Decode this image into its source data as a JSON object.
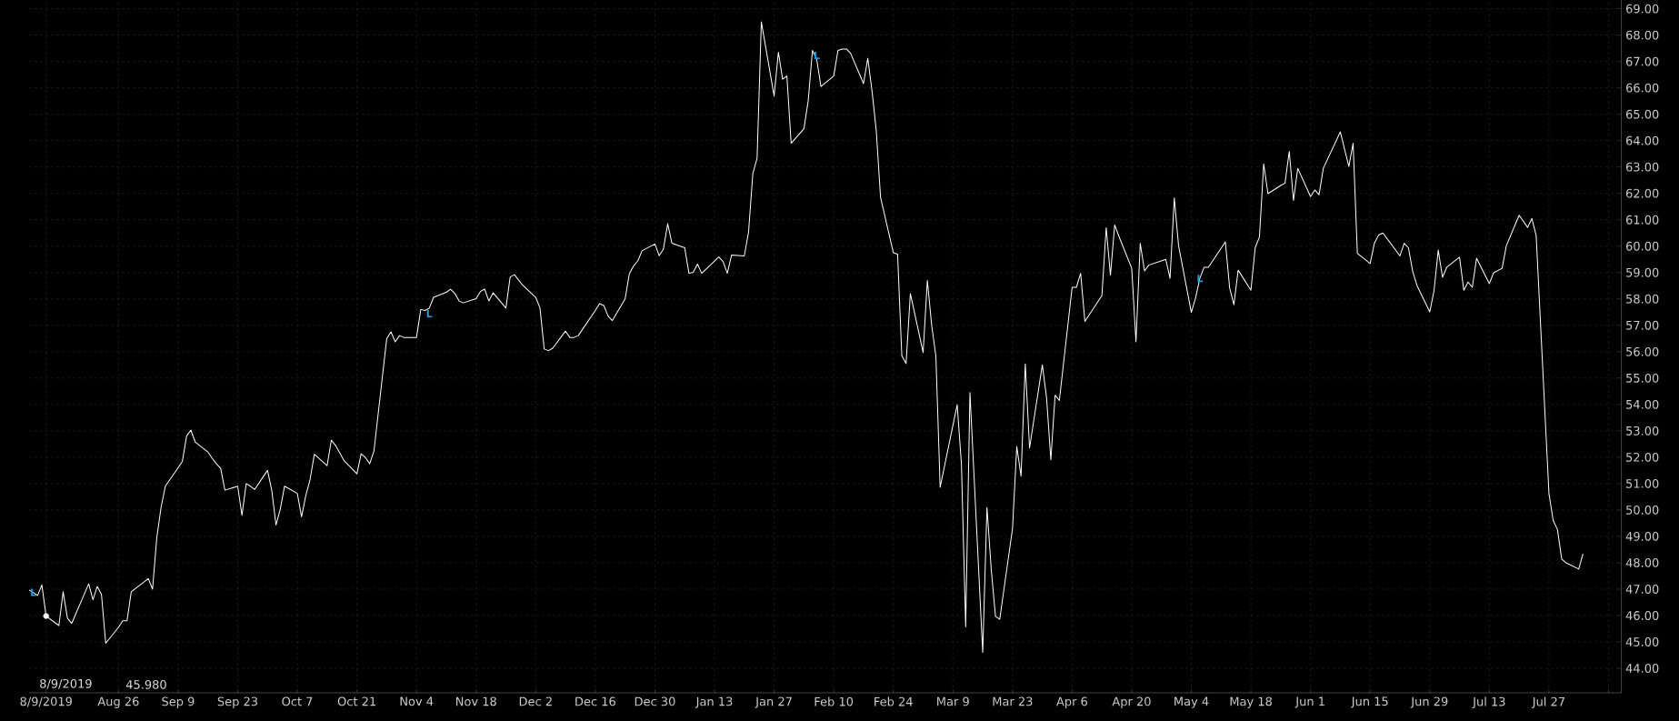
{
  "chart_data": {
    "type": "line",
    "grid": true,
    "xlim": [
      "2019-08-05",
      "2020-08-13"
    ],
    "ylim": [
      43.07,
      69.33
    ],
    "xticks": [
      {
        "value": "2019-08-09",
        "label": "8/9/2019"
      },
      {
        "value": "2019-08-26",
        "label": "Aug 26"
      },
      {
        "value": "2019-09-09",
        "label": "Sep 9"
      },
      {
        "value": "2019-09-23",
        "label": "Sep 23"
      },
      {
        "value": "2019-10-07",
        "label": "Oct 7"
      },
      {
        "value": "2019-10-21",
        "label": "Oct 21"
      },
      {
        "value": "2019-11-04",
        "label": "Nov 4"
      },
      {
        "value": "2019-11-18",
        "label": "Nov 18"
      },
      {
        "value": "2019-12-02",
        "label": "Dec 2"
      },
      {
        "value": "2019-12-16",
        "label": "Dec 16"
      },
      {
        "value": "2019-12-30",
        "label": "Dec 30"
      },
      {
        "value": "2020-01-13",
        "label": "Jan 13"
      },
      {
        "value": "2020-01-27",
        "label": "Jan 27"
      },
      {
        "value": "2020-02-10",
        "label": "Feb 10"
      },
      {
        "value": "2020-02-24",
        "label": "Feb 24"
      },
      {
        "value": "2020-03-09",
        "label": "Mar 9"
      },
      {
        "value": "2020-03-23",
        "label": "Mar 23"
      },
      {
        "value": "2020-04-06",
        "label": "Apr 6"
      },
      {
        "value": "2020-04-20",
        "label": "Apr 20"
      },
      {
        "value": "2020-05-04",
        "label": "May 4"
      },
      {
        "value": "2020-05-18",
        "label": "May 18"
      },
      {
        "value": "2020-06-01",
        "label": "Jun 1"
      },
      {
        "value": "2020-06-15",
        "label": "Jun 15"
      },
      {
        "value": "2020-06-29",
        "label": "Jun 29"
      },
      {
        "value": "2020-07-13",
        "label": "Jul 13"
      },
      {
        "value": "2020-07-27",
        "label": "Jul 27"
      },
      {
        "value": "2020-08-10",
        "label": null
      }
    ],
    "yticks": [
      {
        "value": 44,
        "label": "44.00"
      },
      {
        "value": 45,
        "label": "45.00"
      },
      {
        "value": 46,
        "label": "46.00"
      },
      {
        "value": 47,
        "label": "47.00"
      },
      {
        "value": 48,
        "label": "48.00"
      },
      {
        "value": 49,
        "label": "49.00"
      },
      {
        "value": 50,
        "label": "50.00"
      },
      {
        "value": 51,
        "label": "51.00"
      },
      {
        "value": 52,
        "label": "52.00"
      },
      {
        "value": 53,
        "label": "53.00"
      },
      {
        "value": 54,
        "label": "54.00"
      },
      {
        "value": 55,
        "label": "55.00"
      },
      {
        "value": 56,
        "label": "56.00"
      },
      {
        "value": 57,
        "label": "57.00"
      },
      {
        "value": 58,
        "label": "58.00"
      },
      {
        "value": 59,
        "label": "59.00"
      },
      {
        "value": 60,
        "label": "60.00"
      },
      {
        "value": 61,
        "label": "61.00"
      },
      {
        "value": 62,
        "label": "62.00"
      },
      {
        "value": 63,
        "label": "63.00"
      },
      {
        "value": 64,
        "label": "64.00"
      },
      {
        "value": 65,
        "label": "65.00"
      },
      {
        "value": 66,
        "label": "66.00"
      },
      {
        "value": 67,
        "label": "67.00"
      },
      {
        "value": 68,
        "label": "68.00"
      },
      {
        "value": 69,
        "label": "69.00"
      }
    ],
    "series": [
      {
        "color": "#ffffff",
        "x": [
          "2019-08-05",
          "2019-08-07",
          "2019-08-08",
          "2019-08-09",
          "2019-08-12",
          "2019-08-13",
          "2019-08-14",
          "2019-08-15",
          "2019-08-19",
          "2019-08-20",
          "2019-08-21",
          "2019-08-22",
          "2019-08-23",
          "2019-08-26",
          "2019-08-27",
          "2019-08-28",
          "2019-08-29",
          "2019-09-02",
          "2019-09-03",
          "2019-09-04",
          "2019-09-05",
          "2019-09-06",
          "2019-09-09",
          "2019-09-10",
          "2019-09-11",
          "2019-09-12",
          "2019-09-13",
          "2019-09-16",
          "2019-09-17",
          "2019-09-18",
          "2019-09-19",
          "2019-09-20",
          "2019-09-23",
          "2019-09-24",
          "2019-09-25",
          "2019-09-26",
          "2019-09-27",
          "2019-09-30",
          "2019-10-01",
          "2019-10-02",
          "2019-10-03",
          "2019-10-04",
          "2019-10-07",
          "2019-10-08",
          "2019-10-09",
          "2019-10-10",
          "2019-10-11",
          "2019-10-14",
          "2019-10-15",
          "2019-10-16",
          "2019-10-18",
          "2019-10-21",
          "2019-10-22",
          "2019-10-23",
          "2019-10-24",
          "2019-10-25",
          "2019-10-28",
          "2019-10-29",
          "2019-10-30",
          "2019-10-31",
          "2019-11-01",
          "2019-11-04",
          "2019-11-05",
          "2019-11-06",
          "2019-11-07",
          "2019-11-08",
          "2019-11-11",
          "2019-11-12",
          "2019-11-13",
          "2019-11-14",
          "2019-11-15",
          "2019-11-18",
          "2019-11-19",
          "2019-11-20",
          "2019-11-21",
          "2019-11-22",
          "2019-11-25",
          "2019-11-26",
          "2019-11-27",
          "2019-11-29",
          "2019-12-02",
          "2019-12-03",
          "2019-12-04",
          "2019-12-05",
          "2019-12-06",
          "2019-12-09",
          "2019-12-10",
          "2019-12-11",
          "2019-12-12",
          "2019-12-16",
          "2019-12-17",
          "2019-12-18",
          "2019-12-19",
          "2019-12-20",
          "2019-12-23",
          "2019-12-24",
          "2019-12-25",
          "2019-12-26",
          "2019-12-27",
          "2019-12-30",
          "2019-12-31",
          "2020-01-01",
          "2020-01-02",
          "2020-01-03",
          "2020-01-06",
          "2020-01-07",
          "2020-01-08",
          "2020-01-09",
          "2020-01-10",
          "2020-01-14",
          "2020-01-15",
          "2020-01-16",
          "2020-01-17",
          "2020-01-20",
          "2020-01-21",
          "2020-01-22",
          "2020-01-23",
          "2020-01-24",
          "2020-01-27",
          "2020-01-28",
          "2020-01-29",
          "2020-01-30",
          "2020-01-31",
          "2020-02-03",
          "2020-02-04",
          "2020-02-05",
          "2020-02-06",
          "2020-02-07",
          "2020-02-10",
          "2020-02-11",
          "2020-02-12",
          "2020-02-13",
          "2020-02-14",
          "2020-02-17",
          "2020-02-18",
          "2020-02-19",
          "2020-02-20",
          "2020-02-21",
          "2020-02-24",
          "2020-02-25",
          "2020-02-26",
          "2020-02-27",
          "2020-02-28",
          "2020-03-02",
          "2020-03-03",
          "2020-03-04",
          "2020-03-05",
          "2020-03-06",
          "2020-03-10",
          "2020-03-11",
          "2020-03-12",
          "2020-03-13",
          "2020-03-16",
          "2020-03-17",
          "2020-03-18",
          "2020-03-19",
          "2020-03-20",
          "2020-03-23",
          "2020-03-24",
          "2020-03-25",
          "2020-03-26",
          "2020-03-27",
          "2020-03-30",
          "2020-03-31",
          "2020-04-01",
          "2020-04-02",
          "2020-04-03",
          "2020-04-06",
          "2020-04-07",
          "2020-04-08",
          "2020-04-09",
          "2020-04-13",
          "2020-04-14",
          "2020-04-15",
          "2020-04-16",
          "2020-04-17",
          "2020-04-20",
          "2020-04-21",
          "2020-04-22",
          "2020-04-23",
          "2020-04-24",
          "2020-04-28",
          "2020-04-29",
          "2020-04-30",
          "2020-05-01",
          "2020-05-04",
          "2020-05-05",
          "2020-05-06",
          "2020-05-07",
          "2020-05-08",
          "2020-05-12",
          "2020-05-13",
          "2020-05-14",
          "2020-05-15",
          "2020-05-18",
          "2020-05-19",
          "2020-05-20",
          "2020-05-21",
          "2020-05-22",
          "2020-05-25",
          "2020-05-26",
          "2020-05-27",
          "2020-05-28",
          "2020-05-29",
          "2020-06-01",
          "2020-06-02",
          "2020-06-03",
          "2020-06-04",
          "2020-06-08",
          "2020-06-10",
          "2020-06-11",
          "2020-06-12",
          "2020-06-15",
          "2020-06-16",
          "2020-06-17",
          "2020-06-18",
          "2020-06-22",
          "2020-06-23",
          "2020-06-24",
          "2020-06-25",
          "2020-06-26",
          "2020-06-29",
          "2020-06-30",
          "2020-07-01",
          "2020-07-02",
          "2020-07-03",
          "2020-07-06",
          "2020-07-07",
          "2020-07-08",
          "2020-07-09",
          "2020-07-10",
          "2020-07-13",
          "2020-07-14",
          "2020-07-16",
          "2020-07-17",
          "2020-07-20",
          "2020-07-22",
          "2020-07-23",
          "2020-07-24",
          "2020-07-27",
          "2020-07-28",
          "2020-07-29",
          "2020-07-30",
          "2020-07-31",
          "2020-08-03",
          "2020-08-04"
        ],
        "values": [
          46.97,
          46.76,
          47.16,
          45.98,
          45.62,
          46.9,
          45.9,
          45.7,
          47.2,
          46.6,
          47.1,
          46.8,
          44.95,
          45.55,
          45.8,
          45.8,
          46.9,
          47.4,
          47.0,
          48.96,
          50.1,
          50.9,
          51.6,
          51.84,
          52.8,
          53.03,
          52.58,
          52.2,
          51.96,
          51.75,
          51.58,
          50.75,
          50.9,
          49.8,
          51.0,
          50.9,
          50.78,
          51.5,
          50.75,
          49.43,
          50.03,
          50.9,
          50.63,
          49.74,
          50.55,
          51.15,
          52.11,
          51.68,
          52.65,
          52.44,
          51.87,
          51.37,
          52.13,
          51.99,
          51.75,
          52.23,
          56.49,
          56.75,
          56.37,
          56.61,
          56.54,
          56.54,
          57.6,
          57.56,
          57.65,
          58.06,
          58.25,
          58.37,
          58.21,
          57.92,
          57.85,
          58.01,
          58.28,
          58.37,
          57.92,
          58.23,
          57.65,
          58.83,
          58.92,
          58.51,
          58.06,
          57.66,
          56.1,
          56.04,
          56.13,
          56.78,
          56.54,
          56.54,
          56.61,
          57.56,
          57.82,
          57.75,
          57.35,
          57.18,
          58.0,
          58.96,
          59.25,
          59.45,
          59.83,
          60.08,
          59.64,
          59.89,
          60.85,
          60.11,
          59.94,
          58.97,
          59.01,
          59.32,
          58.97,
          59.59,
          59.42,
          58.97,
          59.66,
          59.63,
          60.54,
          62.75,
          63.33,
          68.5,
          65.69,
          67.35,
          66.33,
          66.45,
          63.9,
          64.45,
          65.5,
          67.42,
          67.09,
          66.05,
          66.45,
          67.42,
          67.47,
          67.47,
          67.3,
          66.16,
          67.12,
          65.88,
          64.37,
          61.85,
          59.75,
          59.7,
          55.85,
          55.55,
          58.2,
          55.97,
          58.7,
          57.01,
          55.83,
          50.86,
          53.99,
          51.74,
          45.57,
          54.45,
          44.6,
          50.1,
          47.75,
          45.97,
          45.86,
          49.3,
          52.41,
          51.28,
          55.54,
          52.35,
          55.5,
          54.25,
          51.9,
          54.35,
          54.15,
          58.44,
          58.44,
          58.97,
          57.15,
          58.13,
          60.7,
          58.9,
          60.8,
          60.37,
          59.16,
          56.37,
          60.11,
          59.06,
          59.28,
          59.5,
          58.78,
          61.83,
          60.02,
          57.49,
          58.04,
          58.78,
          59.2,
          59.2,
          60.16,
          58.42,
          57.78,
          59.09,
          58.33,
          59.94,
          60.35,
          63.12,
          61.99,
          62.3,
          62.38,
          63.59,
          61.73,
          62.95,
          61.88,
          62.13,
          61.95,
          62.95,
          64.33,
          63.02,
          63.9,
          59.73,
          59.34,
          60.11,
          60.42,
          60.5,
          59.63,
          60.11,
          59.94,
          59.04,
          58.51,
          57.51,
          58.3,
          59.85,
          58.82,
          59.2,
          59.58,
          58.33,
          58.64,
          58.44,
          59.54,
          58.58,
          58.99,
          59.16,
          60.02,
          61.17,
          60.71,
          61.05,
          60.4,
          50.63,
          49.6,
          49.26,
          48.14,
          48.0,
          47.76,
          48.34
        ]
      },
      {
        "type": "scatter",
        "marker": "circle",
        "color": "#ffffff",
        "x": [
          "2019-08-09"
        ],
        "values": [
          45.98
        ]
      }
    ],
    "annotations": [
      "8/9/2019",
      "45.980",
      {
        "text": "L",
        "x": "2019-08-06",
        "y": 46.88
      },
      {
        "text": "L",
        "x": "2019-11-07",
        "y": 57.44
      },
      {
        "text": "L",
        "x": "2020-02-06",
        "y": 67.23
      },
      {
        "text": "L",
        "x": "2020-05-06",
        "y": 58.78
      }
    ]
  }
}
